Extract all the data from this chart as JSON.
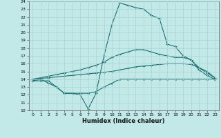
{
  "xlabel": "Humidex (Indice chaleur)",
  "xlim": [
    -0.5,
    23.5
  ],
  "ylim": [
    10,
    24
  ],
  "yticks": [
    10,
    11,
    12,
    13,
    14,
    15,
    16,
    17,
    18,
    19,
    20,
    21,
    22,
    23,
    24
  ],
  "xticks": [
    0,
    1,
    2,
    3,
    4,
    5,
    6,
    7,
    8,
    9,
    10,
    11,
    12,
    13,
    14,
    15,
    16,
    17,
    18,
    19,
    20,
    21,
    22,
    23
  ],
  "bg_color": "#c2e8e8",
  "line_color": "#1a7070",
  "grid_color": "#a8d4d4",
  "line1_x": [
    0,
    1,
    2,
    3,
    4,
    5,
    6,
    7,
    8,
    9,
    10,
    11,
    12,
    13,
    14,
    15,
    16,
    17,
    18,
    19,
    20,
    21,
    22,
    23
  ],
  "line1_y": [
    13.8,
    13.8,
    13.8,
    13.0,
    12.2,
    12.2,
    12.2,
    12.2,
    12.4,
    13.0,
    13.5,
    14.0,
    14.0,
    14.0,
    14.0,
    14.0,
    14.0,
    14.0,
    14.0,
    14.0,
    14.0,
    14.0,
    14.0,
    14.0
  ],
  "line2_x": [
    0,
    1,
    2,
    3,
    4,
    5,
    6,
    7,
    8,
    9,
    10,
    11,
    12,
    13,
    14,
    15,
    16,
    17,
    18,
    19,
    20,
    21,
    22,
    23
  ],
  "line2_y": [
    14.0,
    14.1,
    14.2,
    14.3,
    14.4,
    14.5,
    14.6,
    14.7,
    14.8,
    14.9,
    15.0,
    15.2,
    15.4,
    15.6,
    15.7,
    15.8,
    15.9,
    16.0,
    16.0,
    16.0,
    15.9,
    15.5,
    14.8,
    14.2
  ],
  "line3_x": [
    0,
    1,
    2,
    3,
    4,
    5,
    6,
    7,
    8,
    9,
    10,
    11,
    12,
    13,
    14,
    15,
    16,
    17,
    18,
    19,
    20,
    21,
    22,
    23
  ],
  "line3_y": [
    14.0,
    14.2,
    14.4,
    14.6,
    14.8,
    15.0,
    15.2,
    15.5,
    15.8,
    16.2,
    16.8,
    17.2,
    17.5,
    17.8,
    17.8,
    17.5,
    17.2,
    17.0,
    16.8,
    16.8,
    16.5,
    15.5,
    15.0,
    14.2
  ],
  "line4_x": [
    0,
    1,
    2,
    3,
    4,
    5,
    6,
    7,
    8,
    9,
    10,
    11,
    12,
    13,
    14,
    15,
    16,
    17,
    18,
    19,
    20,
    21,
    22,
    23
  ],
  "line4_y": [
    13.8,
    14.0,
    13.5,
    13.0,
    12.2,
    12.2,
    12.0,
    10.2,
    12.2,
    17.0,
    21.0,
    23.8,
    23.5,
    23.2,
    23.0,
    22.2,
    21.8,
    18.5,
    18.2,
    17.0,
    16.5,
    15.2,
    14.5,
    14.0
  ]
}
